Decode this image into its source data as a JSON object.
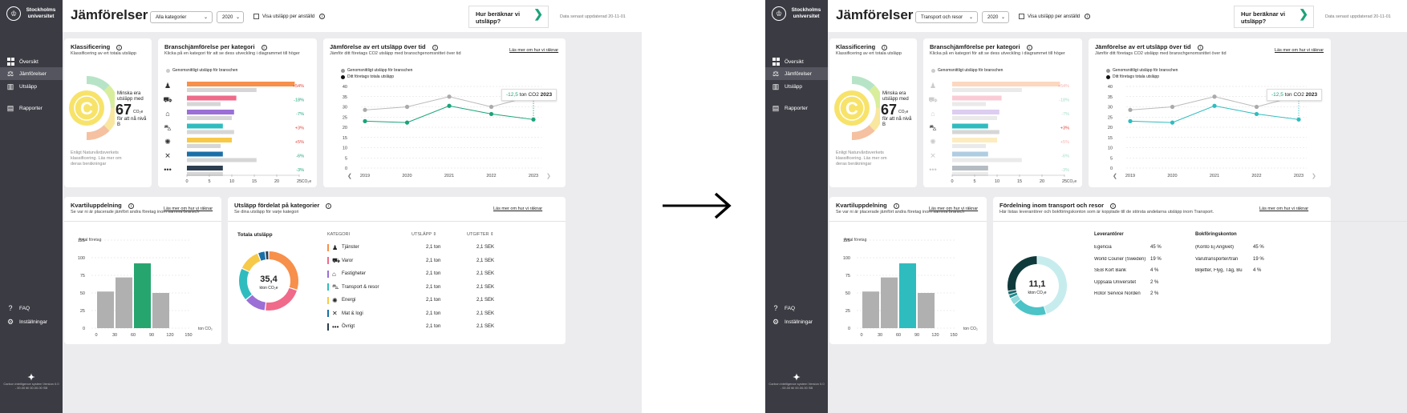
{
  "nav": {
    "logo": "Stockholms universitet",
    "items": [
      "Översikt",
      "Jämförelser",
      "Utsläpp",
      "Rapporter"
    ],
    "bottom": [
      "FAQ",
      "Inställningar"
    ],
    "footer": "Carbon intelligence system Version 0.0 - 00.00 till 00.00.00 SB"
  },
  "header": {
    "title": "Jämförelser",
    "check_label": "Visa utsläpp per anställd",
    "help_label": "Hur beräknar vi utsläpp?",
    "updated": "Data senast uppdaterad 20-11-01"
  },
  "screens": [
    {
      "category": "Alla kategorier",
      "year": "2020"
    },
    {
      "category": "Transport och resor",
      "year": "2020"
    }
  ],
  "klass": {
    "title": "Klassificering",
    "sub": "Klassificering av ert totala utsläpp",
    "grade": "C",
    "t1": "Minska era utsläpp med",
    "val": "67",
    "unit": "CO₂e",
    "t2": "för att nå nivå B",
    "note": "Enligt Naturvårdsverkets klassificering. Läs mer om deras beräkningar"
  },
  "bransch": {
    "title": "Branschjämförelse per kategori",
    "sub": "Klicka på en kategori för att se dess utveckling i diagrammet till höger",
    "legend": "Genomsnittligt utsläpp för branschen",
    "axis_unit": "CO₂e",
    "ticks": [
      "0",
      "5",
      "10",
      "15",
      "20",
      "25"
    ],
    "rows": [
      {
        "icon": "person-icon",
        "pct": "+54%",
        "color": "#f7904a",
        "val": 24,
        "avg": 15.5
      },
      {
        "icon": "cart-icon",
        "pct": "-18%",
        "color": "#f06a8a",
        "val": 11,
        "avg": 7.5
      },
      {
        "icon": "house-icon",
        "pct": "-7%",
        "color": "#9b6fd6",
        "val": 10.5,
        "avg": 10
      },
      {
        "icon": "car-icon",
        "pct": "+3%",
        "color": "#2fbcbf",
        "val": 8,
        "avg": 10.5
      },
      {
        "icon": "bulb-icon",
        "pct": "+5%",
        "color": "#f7c948",
        "val": 10,
        "avg": 7.5
      },
      {
        "icon": "fork-icon",
        "pct": "-6%",
        "color": "#1b6fa8",
        "val": 8,
        "avg": 15.5
      },
      {
        "icon": "dots-icon",
        "pct": "-3%",
        "color": "#2c3e50",
        "val": 8,
        "avg": 8
      }
    ]
  },
  "tid": {
    "title": "Jämförelse av ert utsläpp över tid",
    "sub": "Jämför ditt företags CO2 utsläpp med branschgenomsnittet över tid",
    "link": "Läs mer om hur vi räknar",
    "leg1": "Genomsnittligt utsläpp för branschen",
    "leg2": "Ditt företags totala utsläpp",
    "ylabel": "CO₂e",
    "callout_val": "-12,5",
    "callout_txt": "ton CO2",
    "callout_year": "2023"
  },
  "chart_data": [
    {
      "type": "line",
      "title": "Jämförelse av ert utsläpp över tid",
      "x": [
        "2019",
        "2020",
        "2021",
        "2022",
        "2023"
      ],
      "ylabel": "CO₂e",
      "ylim": [
        0,
        40
      ],
      "yticks": [
        0,
        5,
        10,
        15,
        20,
        25,
        30,
        35,
        40
      ],
      "series": [
        {
          "name": "Genomsnittligt utsläpp för branschen",
          "values": [
            28.5,
            30,
            35,
            30,
            35.5
          ]
        },
        {
          "name": "Ditt företags totala utsläpp",
          "values": [
            23,
            22.3,
            30.5,
            26.5,
            23.8
          ]
        }
      ]
    },
    {
      "type": "bar",
      "title": "Kvartiluppdelning",
      "ylabel": "Antal företag",
      "xlabel": "ton CO₂",
      "categories": [
        "0-30",
        "30-60",
        "60-90",
        "90-120"
      ],
      "xticks": [
        "0",
        "30",
        "60",
        "90",
        "120",
        "150"
      ],
      "yticks": [
        0,
        25,
        50,
        75,
        100,
        125
      ],
      "ylim": [
        0,
        125
      ],
      "values": [
        52,
        72,
        92,
        50
      ]
    }
  ],
  "kvartil": {
    "title": "Kvartiluppdelning",
    "sub": "Se var ni är placerade jämfört andra företag inom samma bransch",
    "link": "Läs mer om hur vi räknar",
    "ylabel": "Antal företag",
    "xunit": "ton CO₂"
  },
  "fordelat": {
    "title": "Utsläpp fördelat på kategorier",
    "sub": "Se dina utsläpp för varje kategori",
    "link": "Läs mer om hur vi räknar",
    "total_label": "Totala utsläpp",
    "donut_val": "35,4",
    "donut_unit": "kton CO₂e",
    "h_cat": "KATEGORI",
    "h_uts": "UTSLÄPP",
    "h_utg": "UTGIFTER",
    "rows": [
      {
        "name": "Tjänster",
        "icon": "person-icon",
        "color": "#f7904a",
        "uts": "2,1 ton",
        "utg": "2,1 SEK",
        "share": 30
      },
      {
        "name": "Varor",
        "icon": "cart-icon",
        "color": "#f06a8a",
        "uts": "2,1 ton",
        "utg": "2,1 SEK",
        "share": 22
      },
      {
        "name": "Fastigheter",
        "icon": "house-icon",
        "color": "#9b6fd6",
        "uts": "2,1 ton",
        "utg": "2,1 SEK",
        "share": 12
      },
      {
        "name": "Transport & resor",
        "icon": "car-icon",
        "color": "#2fbcbf",
        "uts": "2,1 ton",
        "utg": "2,1 SEK",
        "share": 18
      },
      {
        "name": "Energi",
        "icon": "bulb-icon",
        "color": "#f7c948",
        "uts": "2,1 ton",
        "utg": "2,1 SEK",
        "share": 12
      },
      {
        "name": "Mat & logi",
        "icon": "fork-icon",
        "color": "#1b6fa8",
        "uts": "2,1 ton",
        "utg": "2,1 SEK",
        "share": 4
      },
      {
        "name": "Övrigt",
        "icon": "dots-icon",
        "color": "#2c3e50",
        "uts": "2,1 ton",
        "utg": "2,1 SEK",
        "share": 2
      }
    ]
  },
  "transport": {
    "title": "Fördelning inom transport och resor",
    "sub": "Här listas leverantörer och bokföringskonton som är kopplade till de största andelarna utsläpp inom Transport.",
    "link": "Läs mer om hur vi räknar",
    "donut_val": "11,1",
    "donut_unit": "kton CO₂e",
    "h_lev": "Leverantörer",
    "h_bok": "Bokföringskonton",
    "lev": [
      {
        "n": "Egencia",
        "p": "45 %"
      },
      {
        "n": "World Courier (Sweden)",
        "p": "19 %"
      },
      {
        "n": "SEB Kort Bank",
        "p": "4 %"
      },
      {
        "n": "Uppsala Universitet",
        "p": "2 %"
      },
      {
        "n": "Rotor Service Norden",
        "p": "2 %"
      }
    ],
    "bok": [
      {
        "n": "(Konto Ej Angivet)",
        "p": "45 %"
      },
      {
        "n": "Varutransporter/tran",
        "p": "19 %"
      },
      {
        "n": "Biljetter, Flyg, Tåg, Bu",
        "p": "4 %"
      }
    ],
    "shares": [
      45,
      19,
      4,
      2,
      2,
      28
    ]
  }
}
